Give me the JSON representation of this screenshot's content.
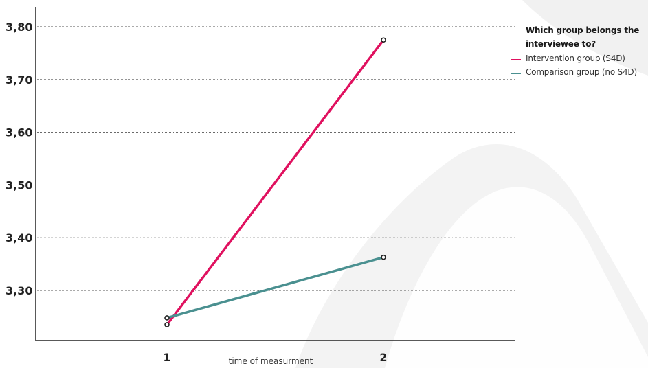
{
  "chart_data": {
    "type": "line",
    "title": "",
    "xlabel": "time of measurment",
    "ylabel": "",
    "categories": [
      "1",
      "2"
    ],
    "y_tick_labels": [
      "3,30",
      "3,40",
      "3,50",
      "3,60",
      "3,70",
      "3,80"
    ],
    "y_ticks": [
      3.3,
      3.4,
      3.5,
      3.6,
      3.7,
      3.8
    ],
    "ylim": [
      3.205,
      3.83
    ],
    "grid": "horizontal dotted",
    "legend": {
      "title": "Which group belongs the interviewee to?",
      "placement": "top-right"
    },
    "series": [
      {
        "name": "Intervention group  (S4D)",
        "color": "#e0115f",
        "values": [
          3.235,
          3.775
        ]
      },
      {
        "name": "Comparison group (no S4D)",
        "color": "#4a9090",
        "values": [
          3.248,
          3.363
        ]
      }
    ]
  }
}
